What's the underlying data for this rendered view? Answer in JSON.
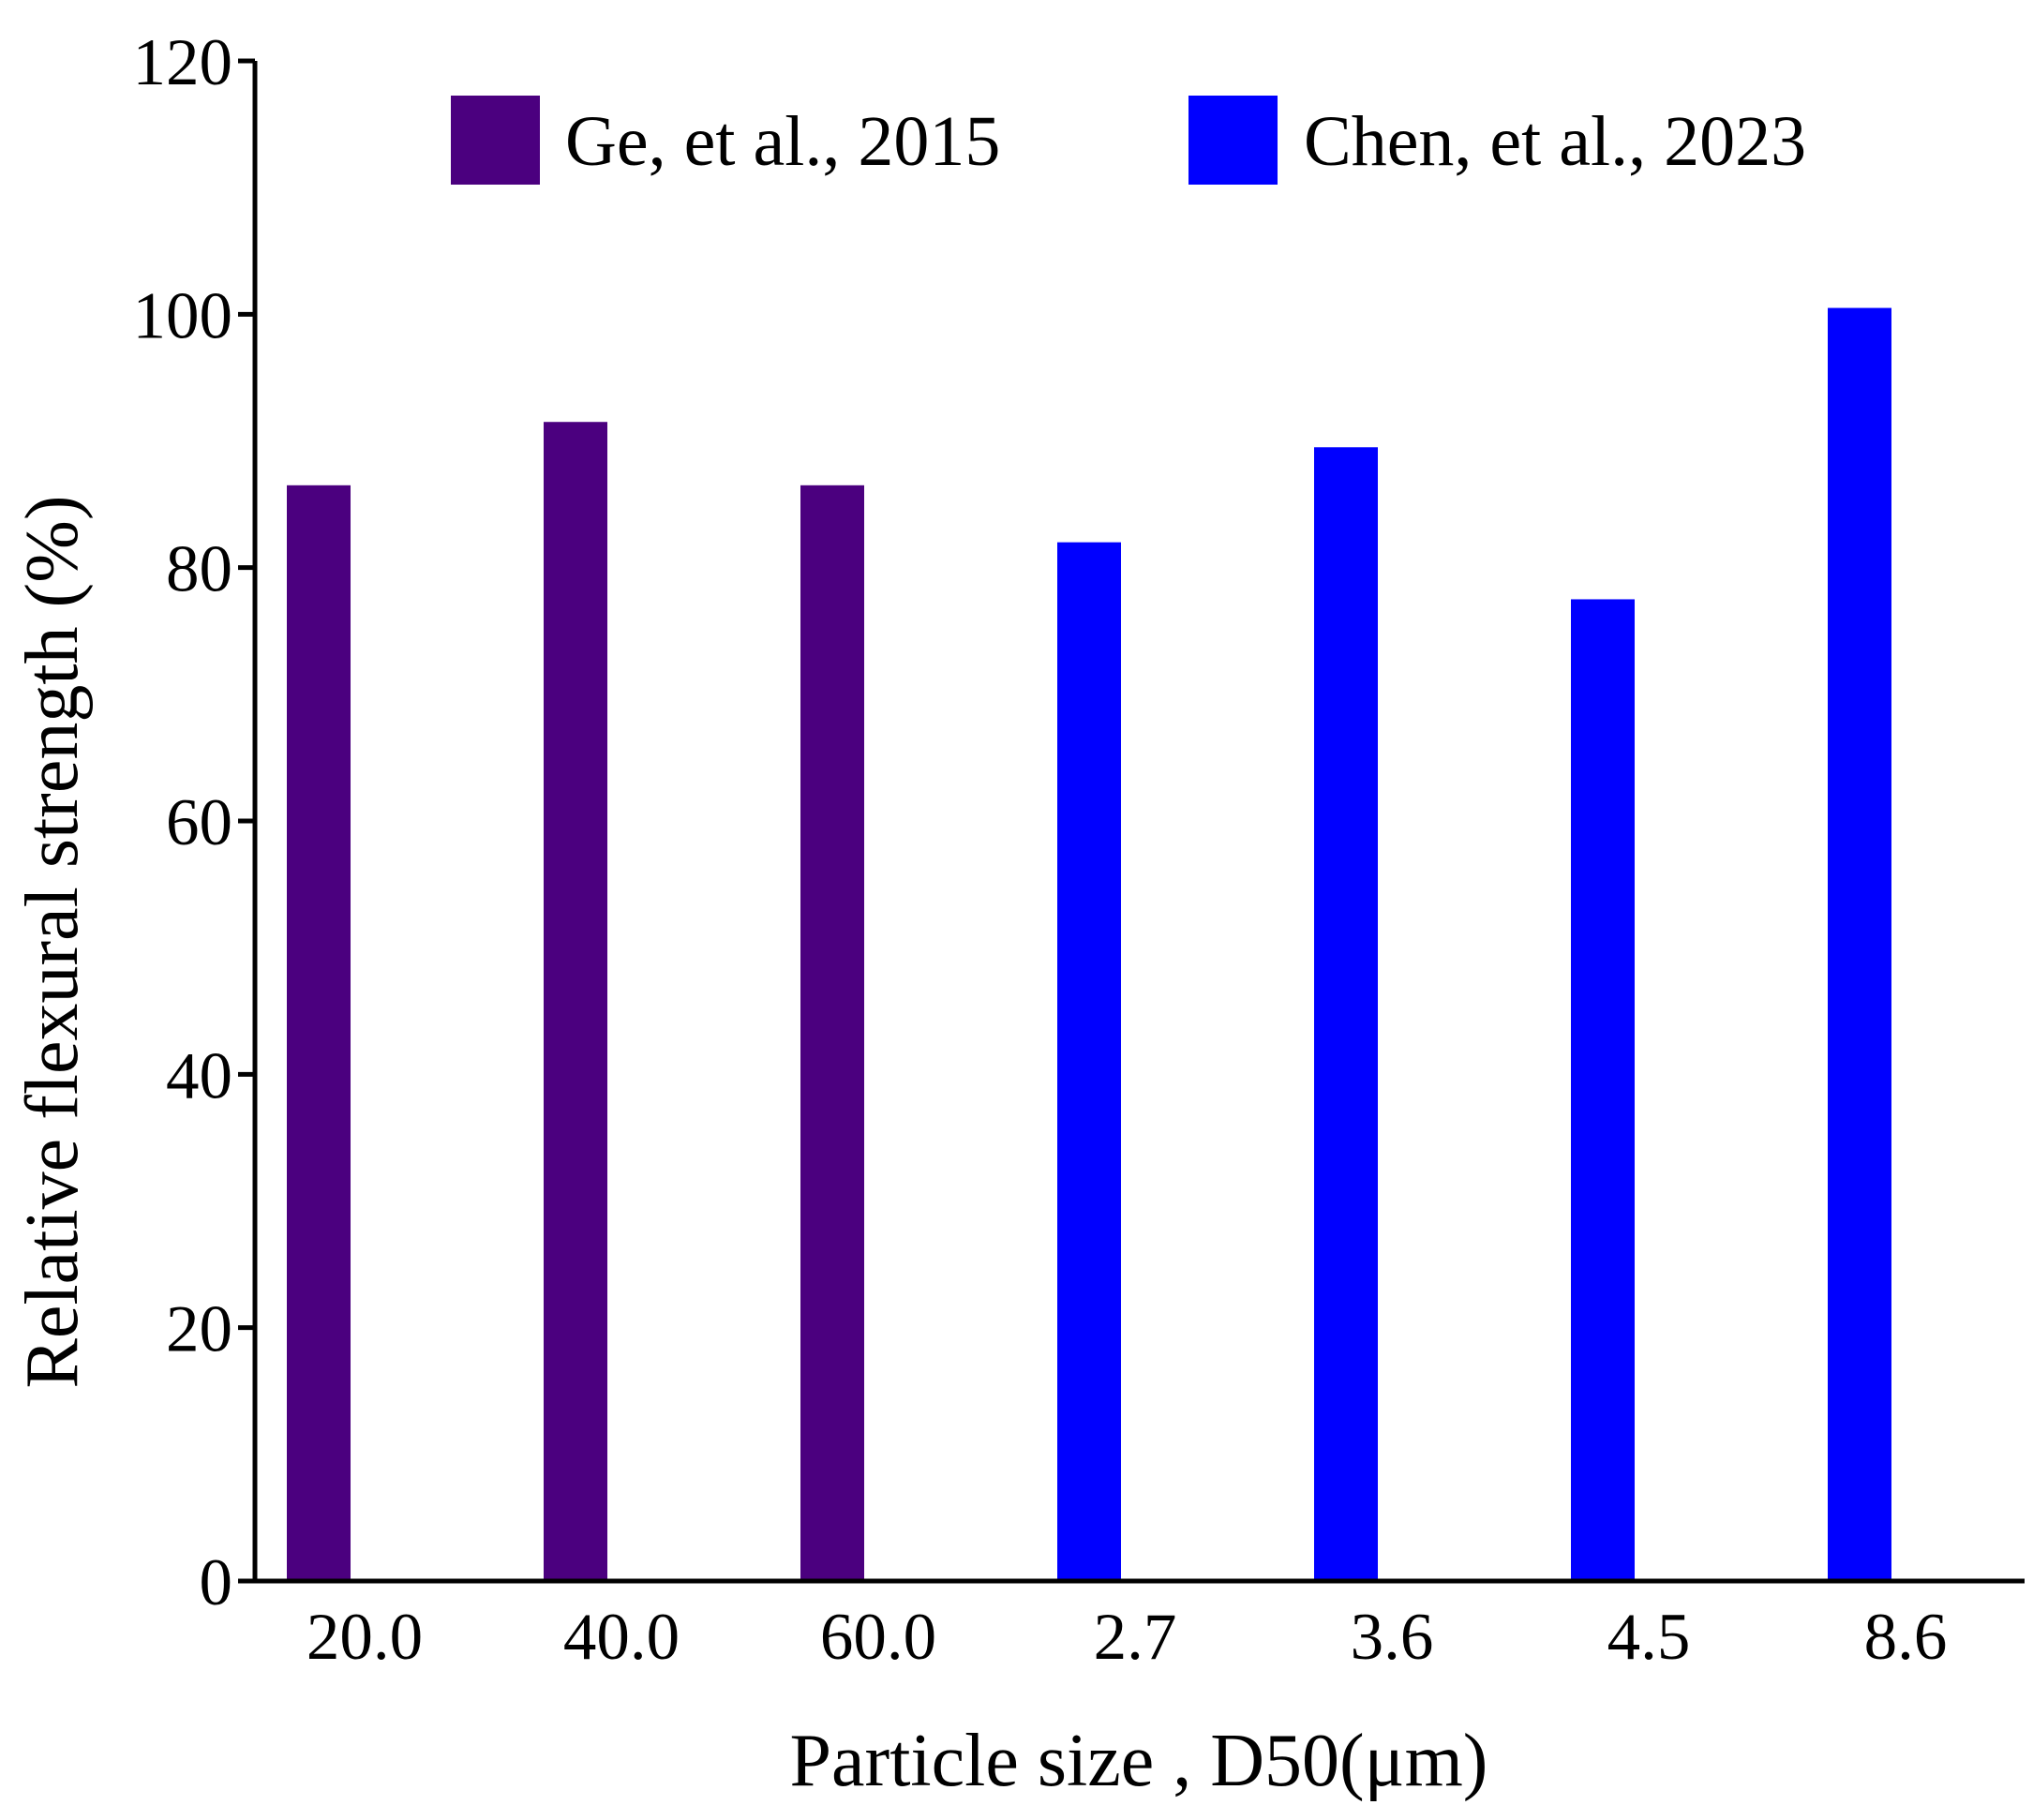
{
  "chart_data": {
    "type": "bar",
    "title": "",
    "xlabel": "Particle size , D50(μm)",
    "ylabel": "Relative flexural strength (%)",
    "ylim": [
      0,
      120
    ],
    "yticks": [
      "0",
      "20",
      "40",
      "60",
      "80",
      "100",
      "120"
    ],
    "legend_position": "top",
    "series": [
      {
        "name": "Ge, et al., 2015",
        "color": "#4b007f"
      },
      {
        "name": "Chen, et al., 2023",
        "color": "#0000ff"
      }
    ],
    "bars": [
      {
        "category": "20.0",
        "value": 86.5,
        "series": 0
      },
      {
        "category": "40.0",
        "value": 91.5,
        "series": 0
      },
      {
        "category": "60.0",
        "value": 86.5,
        "series": 0
      },
      {
        "category": "2.7",
        "value": 82.0,
        "series": 1
      },
      {
        "category": "3.6",
        "value": 89.5,
        "series": 1
      },
      {
        "category": "4.5",
        "value": 77.5,
        "series": 1
      },
      {
        "category": "8.6",
        "value": 100.5,
        "series": 1
      }
    ]
  }
}
